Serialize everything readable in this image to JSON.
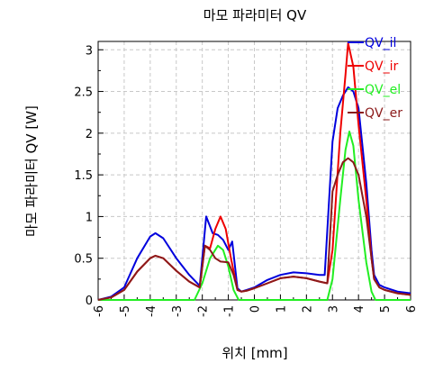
{
  "chart_data": {
    "type": "line",
    "title": "마모 파라미터 QV",
    "xlabel": "위치 [mm]",
    "ylabel": "마모 파라미터 QV [W]",
    "xlim": [
      -6,
      6
    ],
    "ylim": [
      0,
      3.1
    ],
    "x_ticks": [
      "-6",
      "-5",
      "-4",
      "-3",
      "-2",
      "-1",
      "0",
      "1",
      "2",
      "3",
      "4",
      "5",
      "6"
    ],
    "y_ticks": [
      "0",
      "0.5",
      "1",
      "1.5",
      "2",
      "2.5",
      "3"
    ],
    "grid": true,
    "legend_position": "top-right",
    "series": [
      {
        "name": "QV_il",
        "color": "#0000dd",
        "points": [
          [
            -6,
            0
          ],
          [
            -5.5,
            0.04
          ],
          [
            -5,
            0.15
          ],
          [
            -4.5,
            0.5
          ],
          [
            -4,
            0.76
          ],
          [
            -3.8,
            0.8
          ],
          [
            -3.5,
            0.74
          ],
          [
            -3,
            0.5
          ],
          [
            -2.5,
            0.3
          ],
          [
            -2.1,
            0.17
          ],
          [
            -1.85,
            1.0
          ],
          [
            -1.6,
            0.8
          ],
          [
            -1.4,
            0.78
          ],
          [
            -1.2,
            0.72
          ],
          [
            -1,
            0.6
          ],
          [
            -0.85,
            0.7
          ],
          [
            -0.65,
            0.14
          ],
          [
            -0.5,
            0.1
          ],
          [
            -0.3,
            0.12
          ],
          [
            0,
            0.15
          ],
          [
            0.5,
            0.24
          ],
          [
            1,
            0.3
          ],
          [
            1.5,
            0.33
          ],
          [
            2,
            0.32
          ],
          [
            2.5,
            0.3
          ],
          [
            2.7,
            0.3
          ],
          [
            3,
            1.9
          ],
          [
            3.2,
            2.3
          ],
          [
            3.4,
            2.45
          ],
          [
            3.6,
            2.55
          ],
          [
            3.8,
            2.5
          ],
          [
            4,
            2.3
          ],
          [
            4.3,
            1.4
          ],
          [
            4.5,
            0.6
          ],
          [
            4.6,
            0.3
          ],
          [
            4.8,
            0.18
          ],
          [
            5,
            0.15
          ],
          [
            5.5,
            0.1
          ],
          [
            6,
            0.08
          ]
        ]
      },
      {
        "name": "QV_ir",
        "color": "#ee0000",
        "points": [
          [
            -6,
            0
          ],
          [
            -5.5,
            0.03
          ],
          [
            -5,
            0.12
          ],
          [
            -4.5,
            0.34
          ],
          [
            -4,
            0.5
          ],
          [
            -3.8,
            0.53
          ],
          [
            -3.5,
            0.5
          ],
          [
            -3,
            0.35
          ],
          [
            -2.5,
            0.22
          ],
          [
            -2.1,
            0.15
          ],
          [
            -1.9,
            0.65
          ],
          [
            -1.7,
            0.62
          ],
          [
            -1.5,
            0.85
          ],
          [
            -1.3,
            1.0
          ],
          [
            -1.1,
            0.85
          ],
          [
            -0.9,
            0.5
          ],
          [
            -0.65,
            0.12
          ],
          [
            -0.5,
            0.1
          ],
          [
            -0.3,
            0.11
          ],
          [
            0,
            0.14
          ],
          [
            0.5,
            0.2
          ],
          [
            1,
            0.26
          ],
          [
            1.5,
            0.28
          ],
          [
            2,
            0.26
          ],
          [
            2.5,
            0.22
          ],
          [
            2.8,
            0.2
          ],
          [
            3,
            0.6
          ],
          [
            3.3,
            2.0
          ],
          [
            3.5,
            2.7
          ],
          [
            3.6,
            3.08
          ],
          [
            3.8,
            2.8
          ],
          [
            4,
            2.1
          ],
          [
            4.3,
            1.2
          ],
          [
            4.5,
            0.5
          ],
          [
            4.6,
            0.25
          ],
          [
            4.8,
            0.15
          ],
          [
            5,
            0.12
          ],
          [
            5.5,
            0.08
          ],
          [
            6,
            0.06
          ]
        ]
      },
      {
        "name": "QV_el",
        "color": "#22ee22",
        "points": [
          [
            -6,
            0
          ],
          [
            -2.3,
            0
          ],
          [
            -2.0,
            0.2
          ],
          [
            -1.7,
            0.5
          ],
          [
            -1.4,
            0.65
          ],
          [
            -1.2,
            0.6
          ],
          [
            -1.0,
            0.4
          ],
          [
            -0.8,
            0.12
          ],
          [
            -0.6,
            0
          ],
          [
            2.8,
            0
          ],
          [
            3.0,
            0.25
          ],
          [
            3.3,
            1.2
          ],
          [
            3.5,
            1.8
          ],
          [
            3.65,
            2.02
          ],
          [
            3.8,
            1.85
          ],
          [
            4.0,
            1.2
          ],
          [
            4.3,
            0.45
          ],
          [
            4.5,
            0.1
          ],
          [
            4.65,
            0
          ],
          [
            6,
            0
          ]
        ]
      },
      {
        "name": "QV_er",
        "color": "#8b1a1a",
        "points": [
          [
            -6,
            0
          ],
          [
            -5.5,
            0.03
          ],
          [
            -5,
            0.12
          ],
          [
            -4.5,
            0.34
          ],
          [
            -4,
            0.5
          ],
          [
            -3.8,
            0.53
          ],
          [
            -3.5,
            0.5
          ],
          [
            -3,
            0.35
          ],
          [
            -2.5,
            0.22
          ],
          [
            -2.1,
            0.15
          ],
          [
            -1.9,
            0.65
          ],
          [
            -1.7,
            0.6
          ],
          [
            -1.5,
            0.5
          ],
          [
            -1.3,
            0.46
          ],
          [
            -1.0,
            0.45
          ],
          [
            -0.8,
            0.3
          ],
          [
            -0.65,
            0.12
          ],
          [
            -0.5,
            0.1
          ],
          [
            -0.3,
            0.11
          ],
          [
            0,
            0.14
          ],
          [
            0.5,
            0.2
          ],
          [
            1,
            0.26
          ],
          [
            1.5,
            0.28
          ],
          [
            2,
            0.26
          ],
          [
            2.5,
            0.22
          ],
          [
            2.8,
            0.2
          ],
          [
            3,
            1.3
          ],
          [
            3.2,
            1.5
          ],
          [
            3.4,
            1.65
          ],
          [
            3.6,
            1.7
          ],
          [
            3.8,
            1.65
          ],
          [
            4,
            1.5
          ],
          [
            4.3,
            1.0
          ],
          [
            4.5,
            0.5
          ],
          [
            4.6,
            0.25
          ],
          [
            4.8,
            0.15
          ],
          [
            5,
            0.12
          ],
          [
            5.5,
            0.08
          ],
          [
            6,
            0.06
          ]
        ]
      }
    ]
  }
}
